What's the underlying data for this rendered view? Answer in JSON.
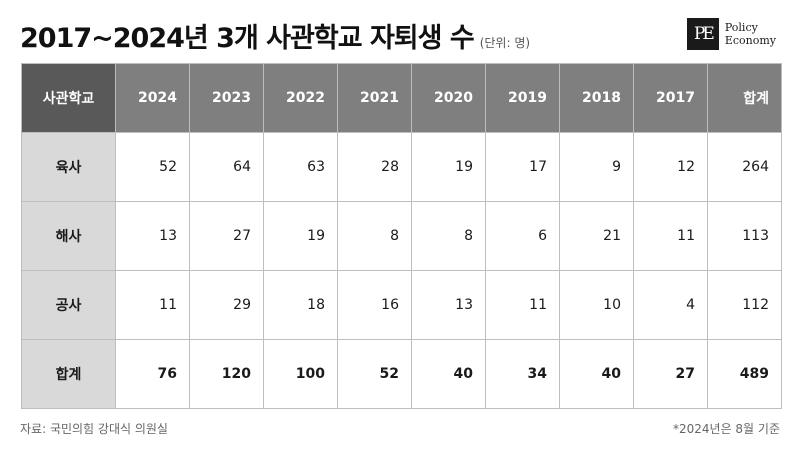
{
  "title": "2017~2024년 3개 사관학교 자퇴생 수",
  "unit": "(단위: 명)",
  "logo": {
    "mark": "PE",
    "line1": "Policy",
    "line2": "Economy"
  },
  "table": {
    "corner": "사관학교",
    "columns": [
      "2024",
      "2023",
      "2022",
      "2021",
      "2020",
      "2019",
      "2018",
      "2017",
      "합계"
    ],
    "rows": [
      {
        "name": "육사",
        "values": [
          "52",
          "64",
          "63",
          "28",
          "19",
          "17",
          "9",
          "12",
          "264"
        ]
      },
      {
        "name": "해사",
        "values": [
          "13",
          "27",
          "19",
          "8",
          "8",
          "6",
          "21",
          "11",
          "113"
        ]
      },
      {
        "name": "공사",
        "values": [
          "11",
          "29",
          "18",
          "16",
          "13",
          "11",
          "10",
          "4",
          "112"
        ]
      },
      {
        "name": "합계",
        "values": [
          "76",
          "120",
          "100",
          "52",
          "40",
          "34",
          "40",
          "27",
          "489"
        ]
      }
    ]
  },
  "source": "자료: 국민의힘 강대식 의원실",
  "note": "*2024년은 8월 기준"
}
